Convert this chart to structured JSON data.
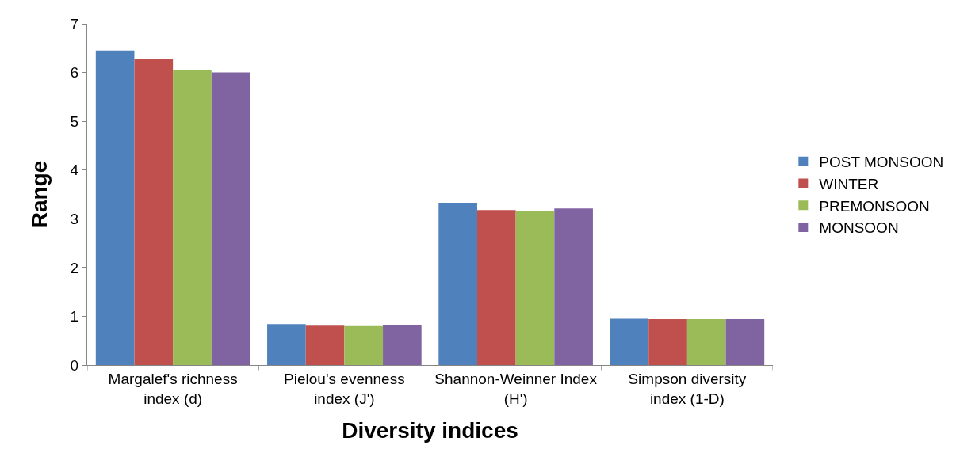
{
  "chart_data": {
    "type": "bar",
    "xlabel": "Diversity indices",
    "ylabel": "Range",
    "categories": [
      "Margalef's richness index (d)",
      "Pielou's evenness index (J')",
      "Shannon-Weinner Index (H')",
      "Simpson diversity index (1-D)"
    ],
    "series": [
      {
        "name": "POST MONSOON",
        "color": "#4f81bd",
        "values": [
          6.45,
          0.84,
          3.33,
          0.95
        ]
      },
      {
        "name": "WINTER",
        "color": "#c0504d",
        "values": [
          6.28,
          0.81,
          3.18,
          0.94
        ]
      },
      {
        "name": "PREMONSOON",
        "color": "#9bbb59",
        "values": [
          6.05,
          0.8,
          3.15,
          0.94
        ]
      },
      {
        "name": "MONSOON",
        "color": "#8064a2",
        "values": [
          6.0,
          0.82,
          3.21,
          0.94
        ]
      }
    ],
    "ylim": [
      0,
      7
    ],
    "yticks": [
      0,
      1,
      2,
      3,
      4,
      5,
      6,
      7
    ],
    "grid": false,
    "legend": "right"
  }
}
